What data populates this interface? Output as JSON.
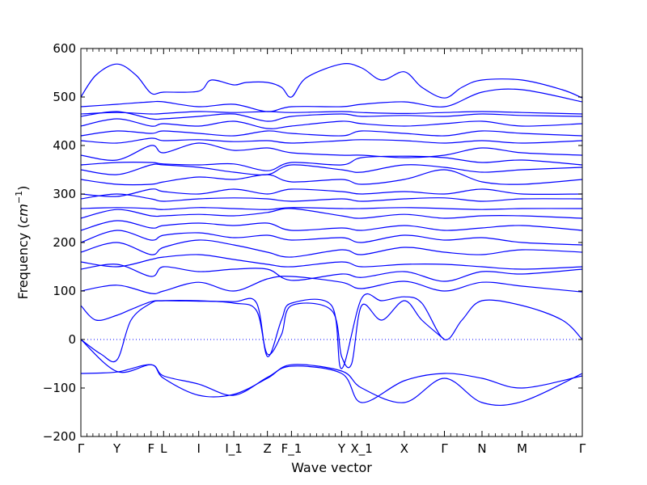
{
  "chart_data": {
    "type": "line",
    "title": "",
    "xlabel": "Wave vector",
    "ylabel_text": "Frequency (",
    "ylabel_unit": "cm",
    "ylabel_exp": "−1",
    "ylabel_close": ")",
    "ylim": [
      -200,
      600
    ],
    "yticks": [
      -200,
      -100,
      0,
      100,
      200,
      300,
      400,
      500,
      600
    ],
    "xlim": [
      0,
      100
    ],
    "grid": false,
    "legend": "none",
    "line_color": "#0000ff",
    "zero_line": {
      "y": 0,
      "style": "dotted"
    },
    "high_symmetry_points": [
      {
        "label": "Γ",
        "x": 0.0
      },
      {
        "label": "Y",
        "x": 7.2
      },
      {
        "label": "F",
        "x": 14.0
      },
      {
        "label": "L",
        "x": 16.5
      },
      {
        "label": "I",
        "x": 23.5
      },
      {
        "label": "I_1",
        "x": 30.5
      },
      {
        "label": "Z",
        "x": 37.2
      },
      {
        "label": "F_1",
        "x": 42.0
      },
      {
        "label": "Y",
        "x": 52.0
      },
      {
        "label": "X_1",
        "x": 56.0
      },
      {
        "label": "X",
        "x": 64.5
      },
      {
        "label": "Γ",
        "x": 72.5
      },
      {
        "label": "N",
        "x": 80.0
      },
      {
        "label": "M",
        "x": 88.0
      },
      {
        "label": "Γ",
        "x": 100.0
      }
    ],
    "series": [
      {
        "x": [
          0,
          7.2,
          14,
          16.5,
          23.5,
          30.5,
          37.2,
          42,
          52,
          56,
          64.5,
          72.5,
          80,
          88,
          100
        ],
        "y": [
          -70,
          -67,
          -52,
          -80,
          -115,
          -113,
          -80,
          -52,
          -65,
          -100,
          -130,
          -80,
          -130,
          -128,
          -70
        ]
      },
      {
        "x": [
          0,
          7.2,
          14,
          16.5,
          23.5,
          30.5,
          37.2,
          42,
          52,
          56,
          64.5,
          72.5,
          80,
          88,
          100
        ],
        "y": [
          0,
          -66,
          -52,
          -75,
          -92,
          -115,
          -78,
          -55,
          -70,
          -130,
          -85,
          -70,
          -80,
          -100,
          -75
        ]
      },
      {
        "x": [
          0,
          4,
          7.2,
          10,
          14,
          16.5,
          23.5,
          30.5,
          35,
          37.2,
          40,
          42,
          50,
          52,
          54,
          56,
          60,
          64.5,
          68,
          72.5
        ],
        "y": [
          0,
          -30,
          -42,
          40,
          75,
          80,
          80,
          75,
          60,
          -30,
          10,
          70,
          60,
          -35,
          -50,
          70,
          40,
          80,
          40,
          0
        ]
      },
      {
        "x": [
          0,
          3,
          7.2,
          10,
          14,
          16.5,
          23.5,
          30.5,
          35,
          37.2,
          40,
          42,
          50,
          52,
          56,
          60,
          64.5,
          68,
          72.5,
          76,
          80,
          88,
          96,
          100
        ],
        "y": [
          70,
          40,
          50,
          62,
          78,
          80,
          79,
          78,
          76,
          -35,
          40,
          75,
          70,
          -60,
          85,
          80,
          88,
          75,
          0,
          40,
          80,
          70,
          40,
          0
        ]
      },
      {
        "x": [
          0,
          7.2,
          14,
          16.5,
          23.5,
          30.5,
          37.2,
          42,
          52,
          56,
          64.5,
          72.5,
          80,
          88,
          100
        ],
        "y": [
          100,
          112,
          95,
          100,
          118,
          100,
          125,
          130,
          118,
          105,
          120,
          100,
          118,
          110,
          98
        ]
      },
      {
        "x": [
          0,
          7.2,
          14,
          16.5,
          23.5,
          30.5,
          37.2,
          42,
          52,
          56,
          64.5,
          72.5,
          80,
          88,
          100
        ],
        "y": [
          145,
          155,
          130,
          150,
          140,
          145,
          145,
          122,
          135,
          128,
          140,
          120,
          140,
          135,
          145
        ]
      },
      {
        "x": [
          0,
          7.2,
          14,
          16.5,
          23.5,
          30.5,
          37.2,
          42,
          52,
          56,
          64.5,
          72.5,
          80,
          88,
          100
        ],
        "y": [
          160,
          150,
          165,
          170,
          175,
          165,
          155,
          150,
          160,
          150,
          155,
          155,
          150,
          145,
          150
        ]
      },
      {
        "x": [
          0,
          7.2,
          14,
          16.5,
          23.5,
          30.5,
          37.2,
          42,
          52,
          56,
          64.5,
          72.5,
          80,
          88,
          100
        ],
        "y": [
          180,
          200,
          175,
          190,
          205,
          195,
          180,
          170,
          185,
          175,
          190,
          180,
          175,
          185,
          180
        ]
      },
      {
        "x": [
          0,
          7.2,
          14,
          16.5,
          23.5,
          30.5,
          37.2,
          42,
          52,
          56,
          64.5,
          72.5,
          80,
          88,
          100
        ],
        "y": [
          200,
          225,
          205,
          215,
          220,
          210,
          215,
          205,
          210,
          200,
          215,
          205,
          210,
          200,
          195
        ]
      },
      {
        "x": [
          0,
          7.2,
          14,
          16.5,
          23.5,
          30.5,
          37.2,
          42,
          52,
          56,
          64.5,
          72.5,
          80,
          88,
          100
        ],
        "y": [
          225,
          245,
          230,
          235,
          240,
          235,
          240,
          225,
          230,
          225,
          235,
          225,
          230,
          235,
          225
        ]
      },
      {
        "x": [
          0,
          7.2,
          14,
          16.5,
          23.5,
          30.5,
          37.2,
          42,
          52,
          56,
          64.5,
          72.5,
          80,
          88,
          100
        ],
        "y": [
          250,
          268,
          255,
          255,
          258,
          255,
          262,
          270,
          255,
          250,
          258,
          250,
          255,
          255,
          250
        ]
      },
      {
        "x": [
          0,
          7.2,
          14,
          16.5,
          23.5,
          30.5,
          37.2,
          42,
          52,
          56,
          64.5,
          72.5,
          80,
          88,
          100
        ],
        "y": [
          270,
          272,
          270,
          268,
          272,
          270,
          268,
          272,
          270,
          270,
          272,
          270,
          268,
          270,
          270
        ]
      },
      {
        "x": [
          0,
          7.2,
          14,
          16.5,
          23.5,
          30.5,
          37.2,
          42,
          52,
          56,
          64.5,
          72.5,
          80,
          88,
          100
        ],
        "y": [
          290,
          300,
          290,
          285,
          290,
          292,
          290,
          285,
          290,
          285,
          290,
          292,
          285,
          290,
          290
        ]
      },
      {
        "x": [
          0,
          7.2,
          14,
          16.5,
          23.5,
          30.5,
          37.2,
          42,
          52,
          56,
          64.5,
          72.5,
          80,
          88,
          100
        ],
        "y": [
          300,
          295,
          310,
          305,
          300,
          310,
          300,
          310,
          305,
          300,
          305,
          300,
          310,
          300,
          300
        ]
      },
      {
        "x": [
          0,
          7.2,
          14,
          16.5,
          23.5,
          30.5,
          37.2,
          42,
          52,
          56,
          64.5,
          72.5,
          80,
          88,
          100
        ],
        "y": [
          330,
          320,
          320,
          325,
          335,
          330,
          340,
          325,
          330,
          320,
          330,
          350,
          325,
          320,
          330
        ]
      },
      {
        "x": [
          0,
          7.2,
          14,
          16.5,
          23.5,
          30.5,
          37.2,
          42,
          52,
          56,
          64.5,
          72.5,
          80,
          88,
          100
        ],
        "y": [
          350,
          340,
          360,
          360,
          355,
          345,
          340,
          360,
          350,
          345,
          360,
          355,
          345,
          350,
          355
        ]
      },
      {
        "x": [
          0,
          7.2,
          14,
          16.5,
          23.5,
          30.5,
          37.2,
          42,
          52,
          56,
          64.5,
          72.5,
          80,
          88,
          100
        ],
        "y": [
          360,
          365,
          365,
          362,
          360,
          362,
          348,
          365,
          360,
          375,
          378,
          375,
          365,
          370,
          360
        ]
      },
      {
        "x": [
          0,
          7.2,
          14,
          16.5,
          23.5,
          30.5,
          37.2,
          42,
          52,
          56,
          64.5,
          72.5,
          80,
          88,
          100
        ],
        "y": [
          380,
          370,
          400,
          385,
          405,
          390,
          395,
          385,
          380,
          380,
          375,
          380,
          395,
          385,
          380
        ]
      },
      {
        "x": [
          0,
          7.2,
          14,
          16.5,
          23.5,
          30.5,
          37.2,
          42,
          52,
          56,
          64.5,
          72.5,
          80,
          88,
          100
        ],
        "y": [
          410,
          405,
          415,
          410,
          412,
          408,
          410,
          405,
          410,
          412,
          410,
          405,
          410,
          405,
          410
        ]
      },
      {
        "x": [
          0,
          7.2,
          14,
          16.5,
          23.5,
          30.5,
          37.2,
          42,
          52,
          56,
          64.5,
          72.5,
          80,
          88,
          100
        ],
        "y": [
          420,
          430,
          425,
          430,
          425,
          420,
          430,
          425,
          420,
          430,
          425,
          420,
          430,
          425,
          420
        ]
      },
      {
        "x": [
          0,
          7.2,
          14,
          16.5,
          23.5,
          30.5,
          37.2,
          42,
          52,
          56,
          64.5,
          72.5,
          80,
          88,
          100
        ],
        "y": [
          440,
          455,
          440,
          445,
          440,
          450,
          435,
          440,
          450,
          445,
          440,
          445,
          450,
          440,
          445
        ]
      },
      {
        "x": [
          0,
          7.2,
          14,
          16.5,
          23.5,
          30.5,
          37.2,
          42,
          52,
          56,
          64.5,
          72.5,
          80,
          88,
          100
        ],
        "y": [
          460,
          470,
          455,
          455,
          460,
          465,
          450,
          460,
          465,
          460,
          462,
          460,
          465,
          462,
          460
        ]
      },
      {
        "x": [
          0,
          7.2,
          14,
          16.5,
          23.5,
          30.5,
          37.2,
          42,
          52,
          56,
          64.5,
          72.5,
          80,
          88,
          100
        ],
        "y": [
          465,
          468,
          465,
          466,
          470,
          468,
          470,
          468,
          470,
          468,
          466,
          468,
          470,
          468,
          465
        ]
      },
      {
        "x": [
          0,
          7.2,
          14,
          16.5,
          23.5,
          30.5,
          37.2,
          42,
          52,
          56,
          64.5,
          72.5,
          80,
          88,
          100
        ],
        "y": [
          480,
          485,
          490,
          490,
          480,
          485,
          470,
          480,
          480,
          485,
          490,
          480,
          510,
          515,
          490
        ]
      },
      {
        "x": [
          0,
          3,
          7.2,
          11,
          14,
          16.5,
          23.5,
          26,
          30.5,
          33,
          37.2,
          40,
          42,
          45,
          52,
          56,
          60,
          64.5,
          68,
          72.5,
          76,
          80,
          88,
          96,
          100
        ],
        "y": [
          500,
          545,
          568,
          545,
          508,
          510,
          512,
          535,
          525,
          530,
          530,
          520,
          500,
          540,
          568,
          560,
          535,
          552,
          520,
          498,
          520,
          535,
          535,
          515,
          498
        ]
      }
    ]
  }
}
